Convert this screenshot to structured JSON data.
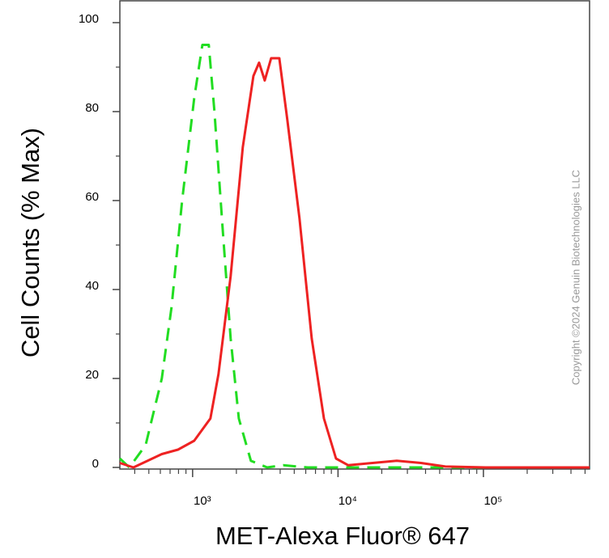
{
  "chart_data": {
    "type": "line",
    "x_label": "MET-Alexa Fluor® 647",
    "y_label": "Cell Counts (% Max)",
    "watermark": "Copyright ©2024 Genuin Biotechnologies LLC",
    "x_scale": "log",
    "xlim": [
      316,
      537000
    ],
    "ylim": [
      0,
      105
    ],
    "xticks": [
      {
        "value": 1000,
        "label": "10³"
      },
      {
        "value": 10000,
        "label": "10⁴"
      },
      {
        "value": 100000,
        "label": "10⁵"
      }
    ],
    "xminorticks": [
      400,
      500,
      600,
      700,
      800,
      900,
      2000,
      3000,
      4000,
      5000,
      6000,
      7000,
      8000,
      9000,
      20000,
      30000,
      40000,
      50000,
      60000,
      70000,
      80000,
      90000,
      200000,
      300000,
      400000,
      500000
    ],
    "yticks": [
      0,
      20,
      40,
      60,
      80,
      100
    ],
    "yminorticks": [
      10,
      30,
      50,
      70,
      90
    ],
    "series": [
      {
        "color": "#22dd22",
        "dash": true,
        "x": [
          316,
          367,
          475,
          614,
          716,
          847,
          1026,
          1167,
          1292,
          1413,
          1607,
          1827,
          2080,
          2518,
          3258,
          4206,
          6180,
          537000
        ],
        "values": [
          2,
          0,
          5,
          20,
          36,
          60,
          83,
          95,
          95,
          80,
          54,
          29,
          11,
          1.5,
          0,
          0.5,
          0,
          0
        ]
      },
      {
        "color": "#ee2222",
        "dash": false,
        "x": [
          316,
          392,
          614,
          794,
          1026,
          1326,
          1507,
          1827,
          2215,
          2618,
          2864,
          3134,
          3468,
          3945,
          4487,
          5435,
          6590,
          7998,
          9690,
          11750,
          17270,
          25350,
          37240,
          54700,
          104000,
          537000
        ],
        "values": [
          1,
          0,
          3,
          4,
          6,
          11,
          21,
          43,
          72,
          88,
          91,
          87,
          92,
          92,
          78,
          56,
          29,
          11,
          2,
          0.5,
          1,
          1.5,
          1,
          0.2,
          0,
          0
        ]
      }
    ]
  }
}
